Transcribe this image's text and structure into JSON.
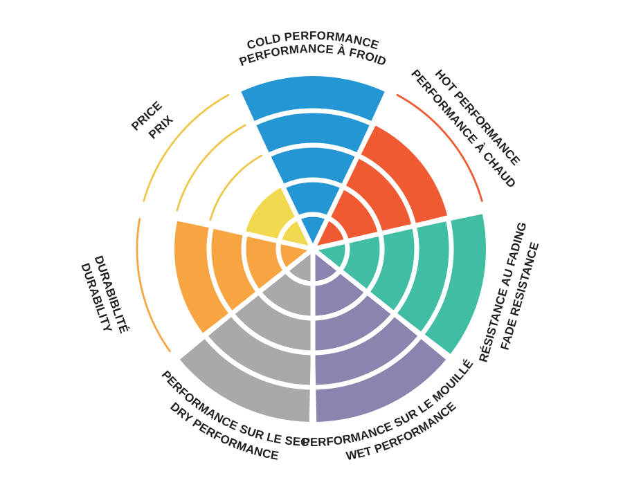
{
  "chart_data": {
    "type": "polar-rating",
    "scale": {
      "min": 0,
      "max": 5,
      "rings": 5
    },
    "grid": {
      "ring_gap_color": "#ffffff",
      "spoke_gap_color": "#ffffff"
    },
    "text_color": "#231f20",
    "background": "#ffffff",
    "categories": [
      {
        "id": "cold",
        "lines": [
          "COLD PERFORMANCE",
          "PERFORMANCE À FROID"
        ],
        "value": 5,
        "color": "#2496d3",
        "outline_color": "#2496d3"
      },
      {
        "id": "hot",
        "lines": [
          "HOT PERFORMANCE",
          "PERFORMANCE À CHAUD"
        ],
        "value": 4,
        "color": "#f05a32",
        "outline_color": "#f05a32"
      },
      {
        "id": "fade",
        "lines": [
          "RÉSISTANCE AU FADING",
          "FADE RESISTANCE"
        ],
        "value": 5,
        "color": "#40bda3",
        "outline_color": "#40bda3"
      },
      {
        "id": "wet",
        "lines": [
          "PERFORMANCE SUR LE MOUILLÉ",
          "WET PERFORMANCE"
        ],
        "value": 5,
        "color": "#8b84ae",
        "outline_color": "#8b84ae"
      },
      {
        "id": "dry",
        "lines": [
          "PERFORMANCE SUR LE SEC",
          "DRY PERFORMANCE"
        ],
        "value": 5,
        "color": "#a9a9ab",
        "outline_color": "#a9a9ab"
      },
      {
        "id": "durability",
        "lines": [
          "DURABIBLITÉ",
          "DURABILITY"
        ],
        "value": 4,
        "color": "#f7a442",
        "outline_color": "#f7a442"
      },
      {
        "id": "price",
        "lines": [
          "PRICE",
          "PRIX"
        ],
        "value": 2,
        "color": "#f2d84e",
        "outline_color": "#efc64c"
      }
    ]
  }
}
